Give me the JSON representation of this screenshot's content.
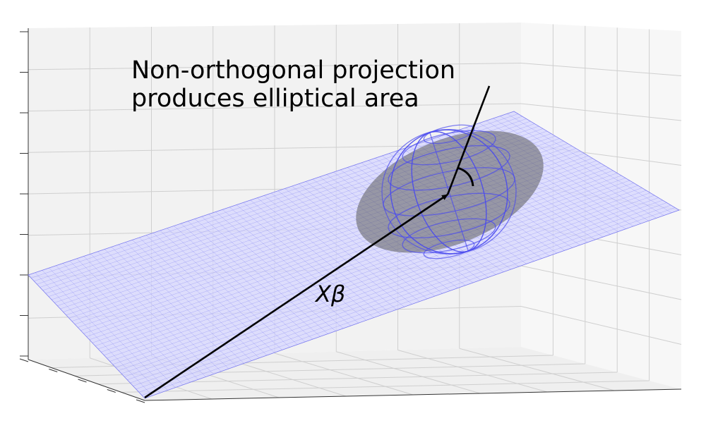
{
  "annotation": {
    "line1": "Non-orthogonal projection",
    "line2": "produces elliptical area"
  },
  "vector_label": "Xβ",
  "colors": {
    "plane_fill": "#d6d6ff",
    "plane_mesh": "#5a5af0",
    "sphere": "#4a4aee",
    "ellipse": "#5c5c5c",
    "pane_back": "#f2f2f2",
    "pane_side": "#f7f7f7",
    "grid": "#cfcfcf",
    "vector": "#000000"
  }
}
